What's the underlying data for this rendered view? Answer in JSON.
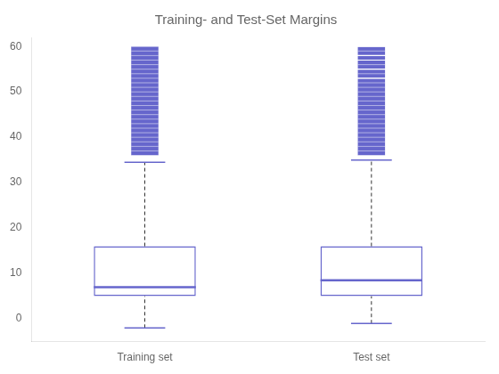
{
  "chart_data": {
    "type": "box",
    "title": "Training- and Test-Set Margins",
    "categories": [
      "Training set",
      "Test set"
    ],
    "q1": [
      5.0,
      5.0
    ],
    "median": [
      7.0,
      8.5
    ],
    "q3": [
      16.0,
      16.0
    ],
    "whisker_low": [
      -2.0,
      -1.0
    ],
    "whisker_high": [
      34.5,
      35.0
    ],
    "outlier_low": [
      36.0,
      36.0
    ],
    "outlier_high": [
      60.0,
      60.0
    ],
    "outlier_marks": [
      [
        36,
        37,
        38,
        39,
        40,
        41,
        42,
        43,
        44,
        45,
        46,
        47,
        48,
        49,
        50,
        51,
        52,
        53,
        54,
        55,
        56,
        57,
        58,
        59,
        60
      ],
      [
        36,
        37,
        38,
        39,
        40,
        41,
        42,
        43,
        44,
        45,
        46,
        47,
        48,
        49,
        50,
        51,
        52,
        53,
        54,
        55,
        56,
        57,
        58,
        59,
        60
      ]
    ],
    "extra_outliers": [
      [],
      [
        53,
        55,
        57,
        58,
        60
      ]
    ],
    "ylim": [
      -5,
      62
    ],
    "yticks": [
      0,
      10,
      20,
      30,
      40,
      50,
      60
    ],
    "grid": false,
    "color": "#6666cc"
  }
}
